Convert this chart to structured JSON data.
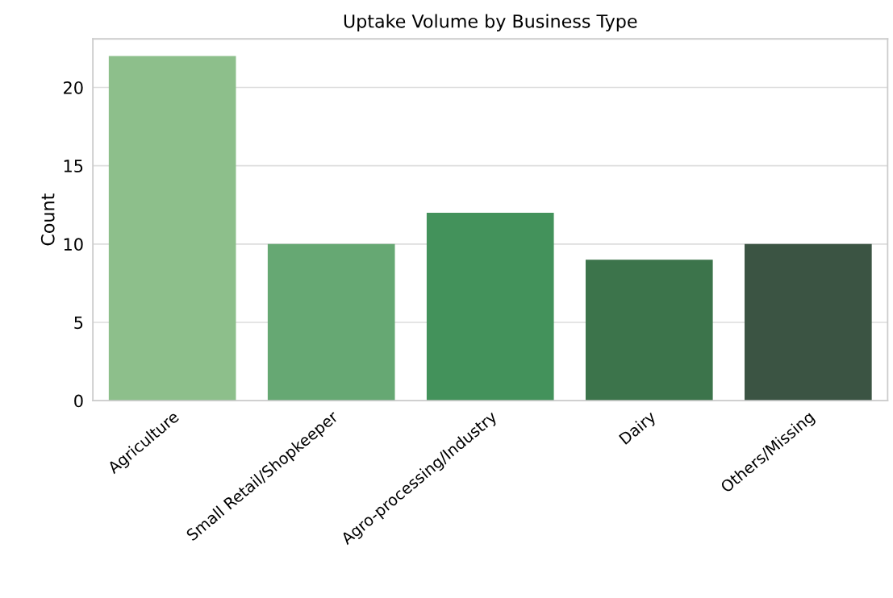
{
  "chart_data": {
    "type": "bar",
    "title": "Uptake Volume by Business Type",
    "ylabel": "Count",
    "categories": [
      "Agriculture",
      "Small Retail/Shopkeeper",
      "Agro-processing/Industry",
      "Dairy",
      "Others/Missing"
    ],
    "values": [
      22,
      10,
      12,
      9,
      10
    ],
    "colors": [
      "#8dbf8b",
      "#66a873",
      "#43925b",
      "#3c744b",
      "#3b5443"
    ],
    "ylim": [
      0,
      23.1
    ],
    "yticks": [
      0,
      5,
      10,
      15,
      20
    ],
    "grid": "y"
  }
}
